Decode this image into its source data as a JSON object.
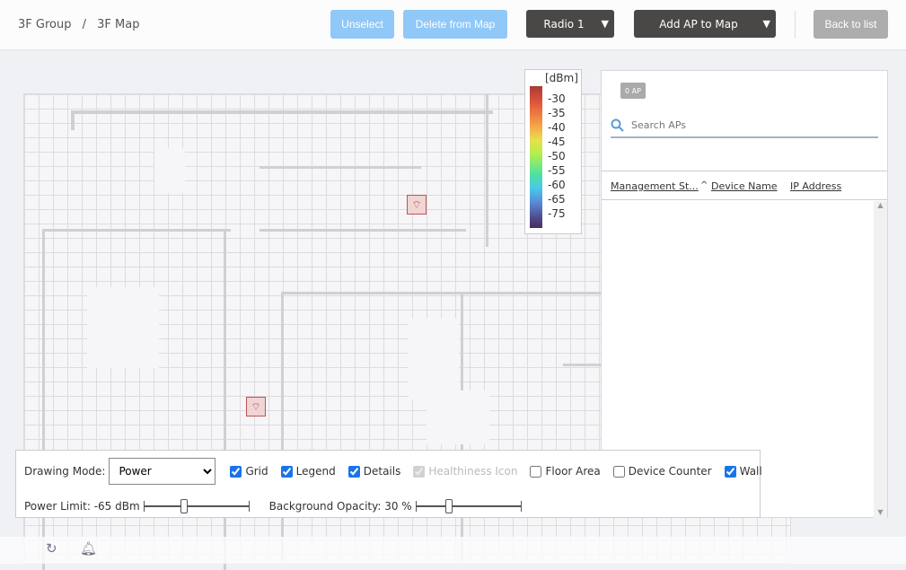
{
  "breadcrumb": [
    "3F Group",
    "/",
    "3F Map"
  ],
  "toolbar": {
    "unselect": "Unselect",
    "delete": "Delete from Map",
    "radio": "Radio 1",
    "add_ap": "Add AP to Map",
    "back": "Back to list",
    "caret": "▼"
  },
  "legend": {
    "unit": "[dBm]",
    "ticks": [
      "-30",
      "-35",
      "-40",
      "-45",
      "-50",
      "-55",
      "-60",
      "-65",
      "-75"
    ]
  },
  "panel": {
    "ap_count": "0 AP",
    "search_placeholder": "Search APs",
    "columns": [
      "Management St...",
      "Device Name",
      "IP Address"
    ],
    "sort_indicator": "^"
  },
  "controls": {
    "drawing_mode_label": "Drawing Mode:",
    "drawing_mode_value": "Power",
    "checkboxes": [
      {
        "label": "Grid",
        "checked": true
      },
      {
        "label": "Legend",
        "checked": true
      },
      {
        "label": "Details",
        "checked": true
      },
      {
        "label": "Healthiness Icon",
        "checked": true,
        "disabled": true
      },
      {
        "label": "Floor Area",
        "checked": false
      },
      {
        "label": "Device Counter",
        "checked": false
      },
      {
        "label": "Wall",
        "checked": true
      }
    ],
    "power_limit_label": "Power Limit: -65 dBm",
    "power_limit_value": -65,
    "power_limit_fraction": 0.38,
    "opacity_label": "Background Opacity: 30 %",
    "opacity_value": 30,
    "opacity_fraction": 0.3
  },
  "colors": {
    "primary_light": "#90c8f8",
    "dark": "#4a4846",
    "gray": "#adadad",
    "checkbox": "#1a73e8"
  }
}
